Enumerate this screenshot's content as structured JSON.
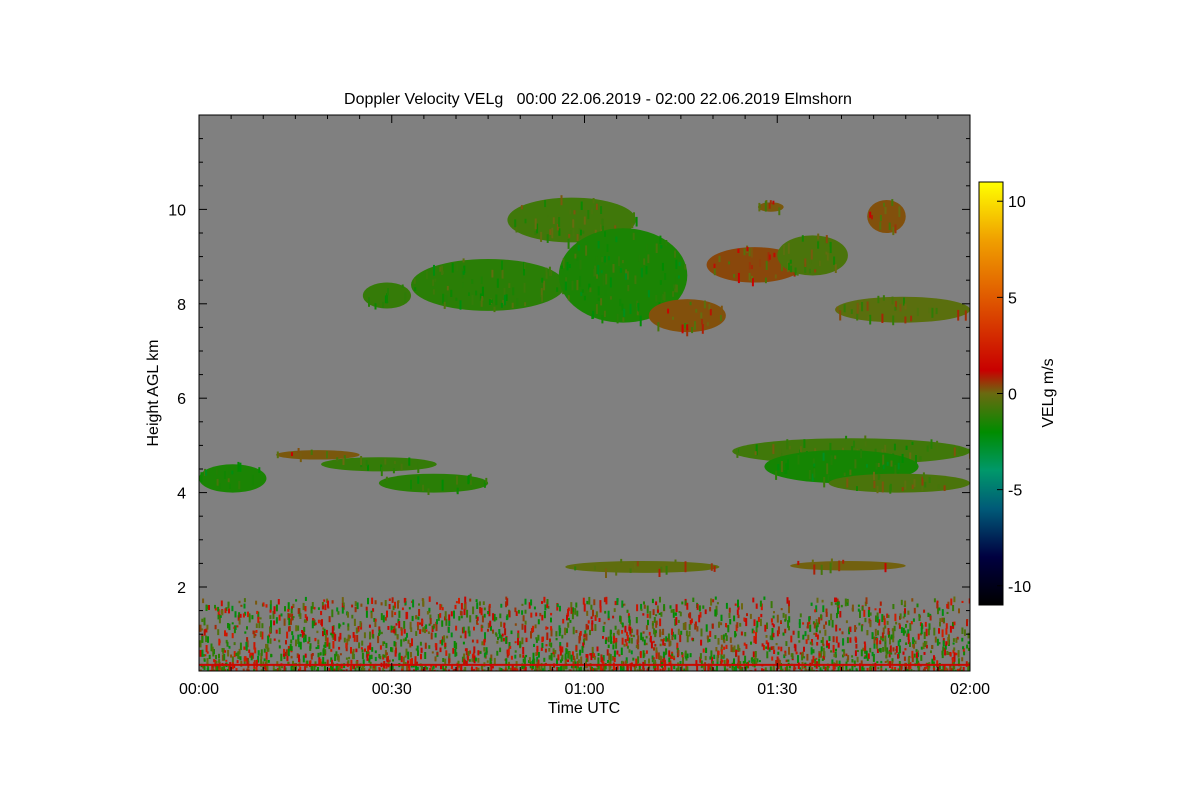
{
  "chart_data": {
    "type": "heatmap",
    "title": "Doppler Velocity VELg   00:00 22.06.2019 - 02:00 22.06.2019 Elmshorn",
    "xlabel": "Time UTC",
    "ylabel": "Height AGL km",
    "xlim_minutes": [
      0,
      120
    ],
    "ylim": [
      0.22,
      12
    ],
    "x_ticks": [
      {
        "value": 0,
        "label": "00:00"
      },
      {
        "value": 30,
        "label": "00:30"
      },
      {
        "value": 60,
        "label": "01:00"
      },
      {
        "value": 90,
        "label": "01:30"
      },
      {
        "value": 120,
        "label": "02:00"
      }
    ],
    "y_ticks": [
      {
        "value": 2,
        "label": "2"
      },
      {
        "value": 4,
        "label": "4"
      },
      {
        "value": 6,
        "label": "6"
      },
      {
        "value": 8,
        "label": "8"
      },
      {
        "value": 10,
        "label": "10"
      }
    ],
    "background_color": "#808080",
    "colorbar": {
      "label": "VELg m/s",
      "range": [
        -11,
        11
      ],
      "ticks": [
        {
          "value": 10,
          "label": "10"
        },
        {
          "value": 5,
          "label": "5"
        },
        {
          "value": 0,
          "label": "0"
        },
        {
          "value": -5,
          "label": "-5"
        },
        {
          "value": -10,
          "label": "-10"
        }
      ],
      "stops": [
        {
          "v": -11,
          "c": "#000000"
        },
        {
          "v": -8.5,
          "c": "#000040"
        },
        {
          "v": -6,
          "c": "#005a78"
        },
        {
          "v": -4,
          "c": "#00986a"
        },
        {
          "v": -2,
          "c": "#008c00"
        },
        {
          "v": 0,
          "c": "#6a6a10"
        },
        {
          "v": 1.2,
          "c": "#c80000"
        },
        {
          "v": 5,
          "c": "#e05a00"
        },
        {
          "v": 8,
          "c": "#f0a000"
        },
        {
          "v": 11,
          "c": "#ffff00"
        }
      ]
    },
    "echo_regions": [
      {
        "name": "cirrus-left",
        "t": [
          25.5,
          33
        ],
        "h": [
          7.9,
          8.45
        ],
        "velocity": -1.0
      },
      {
        "name": "cirrus-main-west",
        "t": [
          33,
          57
        ],
        "h": [
          7.85,
          8.95
        ],
        "velocity": -1.2
      },
      {
        "name": "cirrus-main-top",
        "t": [
          48,
          68
        ],
        "h": [
          9.3,
          10.25
        ],
        "velocity": -0.8
      },
      {
        "name": "cirrus-main-center",
        "t": [
          56,
          76
        ],
        "h": [
          7.6,
          9.6
        ],
        "velocity": -1.5
      },
      {
        "name": "cirrus-main-tail",
        "t": [
          70,
          82
        ],
        "h": [
          7.4,
          8.1
        ],
        "velocity": 0.3
      },
      {
        "name": "cirrus-east-1",
        "t": [
          79,
          94
        ],
        "h": [
          8.45,
          9.2
        ],
        "velocity": 0.4
      },
      {
        "name": "cirrus-east-2",
        "t": [
          90,
          101
        ],
        "h": [
          8.6,
          9.45
        ],
        "velocity": -0.6
      },
      {
        "name": "cirrus-east-small",
        "t": [
          87,
          91
        ],
        "h": [
          9.95,
          10.15
        ],
        "velocity": 0.2
      },
      {
        "name": "cirrus-east-top",
        "t": [
          104,
          110
        ],
        "h": [
          9.5,
          10.2
        ],
        "velocity": 0.3
      },
      {
        "name": "cirrus-right",
        "t": [
          99,
          120
        ],
        "h": [
          7.6,
          8.15
        ],
        "velocity": -0.3
      },
      {
        "name": "midlevel-left",
        "t": [
          0,
          10.5
        ],
        "h": [
          4.0,
          4.6
        ],
        "velocity": -1.5
      },
      {
        "name": "midlevel-band-1",
        "t": [
          12,
          25
        ],
        "h": [
          4.7,
          4.9
        ],
        "velocity": 0.2
      },
      {
        "name": "midlevel-band-2",
        "t": [
          19,
          37
        ],
        "h": [
          4.45,
          4.75
        ],
        "velocity": -1.0
      },
      {
        "name": "midlevel-band-3",
        "t": [
          28,
          45
        ],
        "h": [
          4.0,
          4.4
        ],
        "velocity": -1.2
      },
      {
        "name": "midlevel-right-top",
        "t": [
          83,
          120
        ],
        "h": [
          4.6,
          5.15
        ],
        "velocity": -0.8
      },
      {
        "name": "midlevel-right-center",
        "t": [
          88,
          112
        ],
        "h": [
          4.2,
          4.9
        ],
        "velocity": -1.6
      },
      {
        "name": "midlevel-right-low",
        "t": [
          98,
          120
        ],
        "h": [
          4.0,
          4.4
        ],
        "velocity": -0.6
      },
      {
        "name": "low-layer-1",
        "t": [
          57,
          81
        ],
        "h": [
          2.3,
          2.55
        ],
        "velocity": -0.2
      },
      {
        "name": "low-layer-2",
        "t": [
          92,
          110
        ],
        "h": [
          2.35,
          2.55
        ],
        "velocity": 0.1
      }
    ],
    "boundary_layer": {
      "h_range": [
        0.22,
        1.8
      ],
      "velocity_range": [
        -2.5,
        2.5
      ]
    },
    "surface_line": {
      "h": 0.35,
      "velocity": 1.5
    }
  }
}
